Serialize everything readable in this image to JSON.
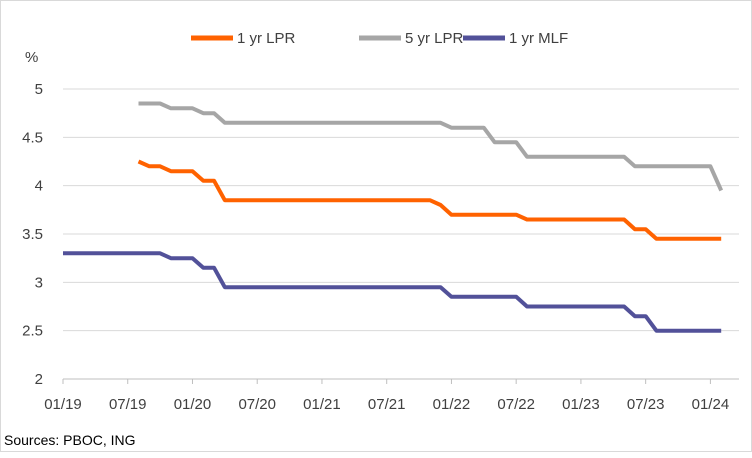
{
  "chart_data": {
    "type": "line",
    "ylabel": "%",
    "ylim": [
      2,
      5
    ],
    "yticks": [
      2,
      2.5,
      3,
      3.5,
      4,
      4.5,
      5
    ],
    "ytick_labels": [
      "2",
      "2.5",
      "3",
      "3.5",
      "4",
      "4.5",
      "5"
    ],
    "xtick_labels": [
      "01/19",
      "07/19",
      "01/20",
      "07/20",
      "01/21",
      "07/21",
      "01/22",
      "07/22",
      "01/23",
      "07/23",
      "01/24"
    ],
    "grid": "horizontal",
    "legend": "top",
    "categories": [
      "01/19",
      "02/19",
      "03/19",
      "04/19",
      "05/19",
      "06/19",
      "07/19",
      "08/19",
      "09/19",
      "10/19",
      "11/19",
      "12/19",
      "01/20",
      "02/20",
      "03/20",
      "04/20",
      "05/20",
      "06/20",
      "07/20",
      "08/20",
      "09/20",
      "10/20",
      "11/20",
      "12/20",
      "01/21",
      "02/21",
      "03/21",
      "04/21",
      "05/21",
      "06/21",
      "07/21",
      "08/21",
      "09/21",
      "10/21",
      "11/21",
      "12/21",
      "01/22",
      "02/22",
      "03/22",
      "04/22",
      "05/22",
      "06/22",
      "07/22",
      "08/22",
      "09/22",
      "10/22",
      "11/22",
      "12/22",
      "01/23",
      "02/23",
      "03/23",
      "04/23",
      "05/23",
      "06/23",
      "07/23",
      "08/23",
      "09/23",
      "10/23",
      "11/23",
      "12/23",
      "01/24",
      "02/24"
    ],
    "series": [
      {
        "name": "1 yr LPR",
        "color": "#ff6200",
        "values": [
          null,
          null,
          null,
          null,
          null,
          null,
          null,
          4.25,
          4.2,
          4.2,
          4.15,
          4.15,
          4.15,
          4.05,
          4.05,
          3.85,
          3.85,
          3.85,
          3.85,
          3.85,
          3.85,
          3.85,
          3.85,
          3.85,
          3.85,
          3.85,
          3.85,
          3.85,
          3.85,
          3.85,
          3.85,
          3.85,
          3.85,
          3.85,
          3.85,
          3.8,
          3.7,
          3.7,
          3.7,
          3.7,
          3.7,
          3.7,
          3.7,
          3.65,
          3.65,
          3.65,
          3.65,
          3.65,
          3.65,
          3.65,
          3.65,
          3.65,
          3.65,
          3.55,
          3.55,
          3.45,
          3.45,
          3.45,
          3.45,
          3.45,
          3.45,
          3.45
        ]
      },
      {
        "name": "5 yr LPR",
        "color": "#a6a6a6",
        "values": [
          null,
          null,
          null,
          null,
          null,
          null,
          null,
          4.85,
          4.85,
          4.85,
          4.8,
          4.8,
          4.8,
          4.75,
          4.75,
          4.65,
          4.65,
          4.65,
          4.65,
          4.65,
          4.65,
          4.65,
          4.65,
          4.65,
          4.65,
          4.65,
          4.65,
          4.65,
          4.65,
          4.65,
          4.65,
          4.65,
          4.65,
          4.65,
          4.65,
          4.65,
          4.6,
          4.6,
          4.6,
          4.6,
          4.45,
          4.45,
          4.45,
          4.3,
          4.3,
          4.3,
          4.3,
          4.3,
          4.3,
          4.3,
          4.3,
          4.3,
          4.3,
          4.2,
          4.2,
          4.2,
          4.2,
          4.2,
          4.2,
          4.2,
          4.2,
          3.95
        ]
      },
      {
        "name": "1 yr MLF",
        "color": "#525199",
        "values": [
          3.3,
          3.3,
          3.3,
          3.3,
          3.3,
          3.3,
          3.3,
          3.3,
          3.3,
          3.3,
          3.25,
          3.25,
          3.25,
          3.15,
          3.15,
          2.95,
          2.95,
          2.95,
          2.95,
          2.95,
          2.95,
          2.95,
          2.95,
          2.95,
          2.95,
          2.95,
          2.95,
          2.95,
          2.95,
          2.95,
          2.95,
          2.95,
          2.95,
          2.95,
          2.95,
          2.95,
          2.85,
          2.85,
          2.85,
          2.85,
          2.85,
          2.85,
          2.85,
          2.75,
          2.75,
          2.75,
          2.75,
          2.75,
          2.75,
          2.75,
          2.75,
          2.75,
          2.75,
          2.65,
          2.65,
          2.5,
          2.5,
          2.5,
          2.5,
          2.5,
          2.5,
          2.5
        ]
      }
    ]
  },
  "source": "Sources: PBOC, ING"
}
